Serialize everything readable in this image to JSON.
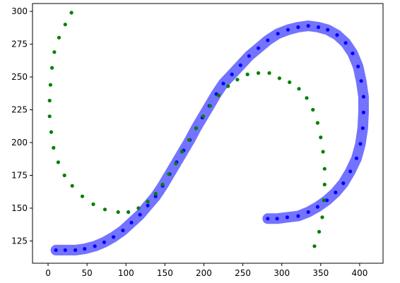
{
  "chart_data": {
    "type": "scatter",
    "xlim": [
      -20,
      430
    ],
    "ylim": [
      108,
      306
    ],
    "xticks": [
      0,
      50,
      100,
      150,
      200,
      250,
      300,
      350,
      400
    ],
    "yticks": [
      125,
      150,
      175,
      200,
      225,
      250,
      275,
      300
    ],
    "grid": false,
    "series": [
      {
        "marker": "dot",
        "color": "#0000ff",
        "band_color": "#0000ff",
        "band_opacity": 0.55,
        "points": [
          [
            10,
            118
          ],
          [
            22,
            118
          ],
          [
            35,
            118
          ],
          [
            47,
            119
          ],
          [
            60,
            121
          ],
          [
            72,
            124
          ],
          [
            84,
            128
          ],
          [
            96,
            133
          ],
          [
            107,
            139
          ],
          [
            118,
            145
          ],
          [
            128,
            152
          ],
          [
            138,
            159
          ],
          [
            147,
            167
          ],
          [
            156,
            176
          ],
          [
            165,
            185
          ],
          [
            174,
            194
          ],
          [
            182,
            202
          ],
          [
            190,
            211
          ],
          [
            198,
            219
          ],
          [
            207,
            228
          ],
          [
            216,
            237
          ],
          [
            225,
            245
          ],
          [
            236,
            252
          ],
          [
            247,
            259
          ],
          [
            258,
            266
          ],
          [
            270,
            272
          ],
          [
            282,
            278
          ],
          [
            295,
            283
          ],
          [
            308,
            286
          ],
          [
            321,
            288
          ],
          [
            334,
            289
          ],
          [
            347,
            288
          ],
          [
            359,
            286
          ],
          [
            371,
            282
          ],
          [
            382,
            276
          ],
          [
            391,
            268
          ],
          [
            398,
            258
          ],
          [
            402,
            247
          ],
          [
            405,
            235
          ],
          [
            405,
            223
          ],
          [
            404,
            211
          ],
          [
            401,
            199
          ],
          [
            396,
            188
          ],
          [
            388,
            178
          ],
          [
            379,
            169
          ],
          [
            369,
            162
          ],
          [
            358,
            156
          ],
          [
            346,
            151
          ],
          [
            334,
            147
          ],
          [
            321,
            144
          ],
          [
            307,
            143
          ],
          [
            294,
            142
          ],
          [
            282,
            142
          ]
        ]
      },
      {
        "marker": "dot",
        "color": "#008000",
        "points": [
          [
            30,
            299
          ],
          [
            22,
            290
          ],
          [
            14,
            280
          ],
          [
            8,
            269
          ],
          [
            5,
            257
          ],
          [
            3,
            244
          ],
          [
            2,
            232
          ],
          [
            2,
            220
          ],
          [
            4,
            208
          ],
          [
            7,
            196
          ],
          [
            13,
            185
          ],
          [
            21,
            175
          ],
          [
            31,
            167
          ],
          [
            44,
            159
          ],
          [
            58,
            153
          ],
          [
            73,
            149
          ],
          [
            90,
            147
          ],
          [
            103,
            147
          ],
          [
            116,
            150
          ],
          [
            128,
            155
          ],
          [
            138,
            161
          ],
          [
            147,
            168
          ],
          [
            155,
            176
          ],
          [
            164,
            184
          ],
          [
            172,
            193
          ],
          [
            181,
            202
          ],
          [
            190,
            211
          ],
          [
            199,
            220
          ],
          [
            208,
            228
          ],
          [
            219,
            236
          ],
          [
            231,
            243
          ],
          [
            243,
            248
          ],
          [
            256,
            252
          ],
          [
            270,
            253
          ],
          [
            284,
            253
          ],
          [
            297,
            249
          ],
          [
            310,
            246
          ],
          [
            322,
            241
          ],
          [
            332,
            234
          ],
          [
            340,
            225
          ],
          [
            346,
            215
          ],
          [
            350,
            204
          ],
          [
            353,
            193
          ],
          [
            355,
            180
          ],
          [
            355,
            168
          ],
          [
            354,
            156
          ],
          [
            352,
            143
          ],
          [
            348,
            132
          ],
          [
            342,
            121
          ]
        ]
      }
    ]
  }
}
